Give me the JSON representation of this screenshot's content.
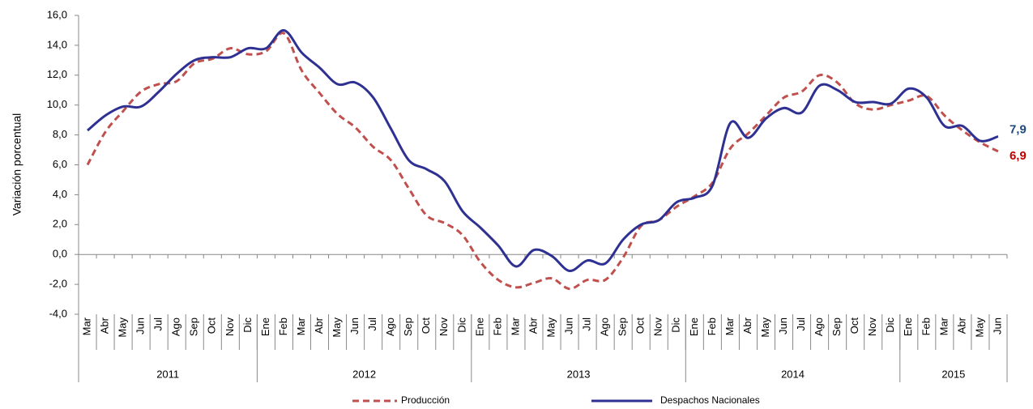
{
  "chart_data": {
    "type": "line",
    "y_label": "Variación porcentual",
    "categories": [
      "Mar",
      "Abr",
      "May",
      "Jun",
      "Jul",
      "Ago",
      "Sep",
      "Oct",
      "Nov",
      "Dic",
      "Ene",
      "Feb",
      "Mar",
      "Abr",
      "May",
      "Jun",
      "Jul",
      "Ago",
      "Sep",
      "Oct",
      "Nov",
      "Dic",
      "Ene",
      "Feb",
      "Mar",
      "Abr",
      "May",
      "Jun",
      "Jul",
      "Ago",
      "Sep",
      "Oct",
      "Nov",
      "Dic",
      "Ene",
      "Feb",
      "Mar",
      "Abr",
      "May",
      "Jun",
      "Jul",
      "Ago",
      "Sep",
      "Oct",
      "Nov",
      "Dic",
      "Ene",
      "Feb",
      "Mar",
      "Abr",
      "May",
      "Jun"
    ],
    "groups": [
      {
        "label": "2011",
        "count": 10
      },
      {
        "label": "2012",
        "count": 12
      },
      {
        "label": "2013",
        "count": 12
      },
      {
        "label": "2014",
        "count": 12
      },
      {
        "label": "2015",
        "count": 6
      }
    ],
    "series": [
      {
        "name": "Producción",
        "color": "#c0504d",
        "dashed": true,
        "values": [
          6.0,
          8.2,
          9.6,
          10.9,
          11.4,
          11.6,
          12.8,
          13.1,
          13.8,
          13.4,
          13.6,
          14.8,
          12.3,
          10.8,
          9.4,
          8.5,
          7.2,
          6.3,
          4.4,
          2.6,
          2.1,
          1.3,
          -0.5,
          -1.7,
          -2.2,
          -1.9,
          -1.6,
          -2.3,
          -1.7,
          -1.7,
          -0.2,
          1.9,
          2.3,
          3.2,
          3.9,
          4.8,
          7.1,
          8.1,
          9.3,
          10.5,
          10.9,
          12.0,
          11.5,
          10.1,
          9.7,
          10.0,
          10.3,
          10.6,
          9.3,
          8.3,
          7.5,
          6.9
        ],
        "value_labels": [
          null,
          null,
          null,
          null,
          null,
          null,
          null,
          null,
          null,
          null,
          null,
          null,
          null,
          null,
          null,
          null,
          null,
          null,
          null,
          null,
          null,
          null,
          null,
          null,
          null,
          null,
          null,
          null,
          null,
          null,
          null,
          null,
          null,
          null,
          null,
          null,
          null,
          null,
          null,
          null,
          null,
          null,
          null,
          null,
          null,
          null,
          null,
          null,
          null,
          null,
          null,
          "6,9"
        ],
        "label_color": "#c00000"
      },
      {
        "name": "Despachos Nacionales",
        "color": "#2e3192",
        "dashed": false,
        "values": [
          8.3,
          9.3,
          9.9,
          9.9,
          10.9,
          12.1,
          13.0,
          13.2,
          13.2,
          13.8,
          13.8,
          15.0,
          13.5,
          12.5,
          11.4,
          11.5,
          10.5,
          8.4,
          6.3,
          5.7,
          4.9,
          2.9,
          1.8,
          0.6,
          -0.8,
          0.3,
          -0.1,
          -1.1,
          -0.4,
          -0.6,
          1.0,
          2.0,
          2.3,
          3.5,
          3.8,
          4.6,
          8.8,
          7.8,
          9.1,
          9.8,
          9.5,
          11.3,
          11.0,
          10.2,
          10.2,
          10.1,
          11.1,
          10.5,
          8.6,
          8.6,
          7.6,
          7.9
        ],
        "value_labels": [
          null,
          null,
          null,
          null,
          null,
          null,
          null,
          null,
          null,
          null,
          null,
          null,
          null,
          null,
          null,
          null,
          null,
          null,
          null,
          null,
          null,
          null,
          null,
          null,
          null,
          null,
          null,
          null,
          null,
          null,
          null,
          null,
          null,
          null,
          null,
          null,
          null,
          null,
          null,
          null,
          null,
          null,
          null,
          null,
          null,
          null,
          null,
          null,
          null,
          null,
          null,
          "7,9"
        ],
        "label_color": "#1f497d"
      }
    ],
    "ylim": [
      -4,
      16
    ],
    "yticks": [
      {
        "value": -4,
        "label": "-4,0"
      },
      {
        "value": -2,
        "label": "-2,0"
      },
      {
        "value": 0,
        "label": "0,0"
      },
      {
        "value": 2,
        "label": "2,0"
      },
      {
        "value": 4,
        "label": "4,0"
      },
      {
        "value": 6,
        "label": "6,0"
      },
      {
        "value": 8,
        "label": "8,0"
      },
      {
        "value": 10,
        "label": "10,0"
      },
      {
        "value": 12,
        "label": "12,0"
      },
      {
        "value": 14,
        "label": "14,0"
      },
      {
        "value": 16,
        "label": "16,0"
      }
    ],
    "grid": false
  }
}
